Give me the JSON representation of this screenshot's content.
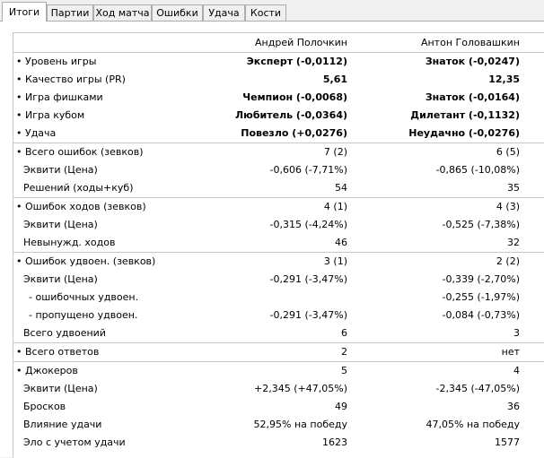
{
  "tabs": [
    "Итоги",
    "Партии",
    "Ход матча",
    "Ошибки",
    "Удача",
    "Кости"
  ],
  "players": [
    "Андрей Полочкин",
    "Антон Головашкин"
  ],
  "rows": [
    {
      "label": "• Уровень игры",
      "p1": "Эксперт (-0,0112)",
      "p2": "Знаток (-0,0247)"
    },
    {
      "label": "• Качество игры (PR)",
      "p1": "5,61",
      "p2": "12,35"
    },
    {
      "label": "• Игра фишками",
      "p1": "Чемпион (-0,0068)",
      "p2": "Знаток (-0,0164)"
    },
    {
      "label": "• Игра кубом",
      "p1": "Любитель (-0,0364)",
      "p2": "Дилетант (-0,1132)"
    },
    {
      "label": "• Удача",
      "p1": "Повезло (+0,0276)",
      "p2": "Неудачно (-0,0276)"
    },
    {
      "label": "• Всего ошибок (зевков)",
      "p1": "7 (2)",
      "p2": "6 (5)"
    },
    {
      "label": "Эквити (Цена)",
      "p1": "-0,606 (-7,71%)",
      "p2": "-0,865 (-10,08%)"
    },
    {
      "label": "Решений (ходы+куб)",
      "p1": "54",
      "p2": "35"
    },
    {
      "label": "• Ошибок ходов (зевков)",
      "p1": "4 (1)",
      "p2": "4 (3)"
    },
    {
      "label": "Эквити (Цена)",
      "p1": "-0,315 (-4,24%)",
      "p2": "-0,525 (-7,38%)"
    },
    {
      "label": "Невынужд. ходов",
      "p1": "46",
      "p2": "32"
    },
    {
      "label": "• Ошибок удвоен. (зевков)",
      "p1": "3 (1)",
      "p2": "2 (2)"
    },
    {
      "label": "Эквити (Цена)",
      "p1": "-0,291 (-3,47%)",
      "p2": "-0,339 (-2,70%)"
    },
    {
      "label": "- ошибочных удвоен.",
      "p1": "",
      "p2": "-0,255 (-1,97%)"
    },
    {
      "label": "- пропущено удвоен.",
      "p1": "-0,291 (-3,47%)",
      "p2": "-0,084 (-0,73%)"
    },
    {
      "label": "Всего удвоений",
      "p1": "6",
      "p2": "3"
    },
    {
      "label": "• Всего ответов",
      "p1": "2",
      "p2": "нет"
    },
    {
      "label": "• Джокеров",
      "p1": "5",
      "p2": "4"
    },
    {
      "label": "Эквити (Цена)",
      "p1": "+2,345 (+47,05%)",
      "p2": "-2,345 (-47,05%)"
    },
    {
      "label": "Бросков",
      "p1": "49",
      "p2": "36"
    },
    {
      "label": "Влияние удачи",
      "p1": "52,95% на победу",
      "p2": "47,05% на победу"
    },
    {
      "label": "Эло с учетом удачи",
      "p1": "1623",
      "p2": "1577"
    }
  ]
}
